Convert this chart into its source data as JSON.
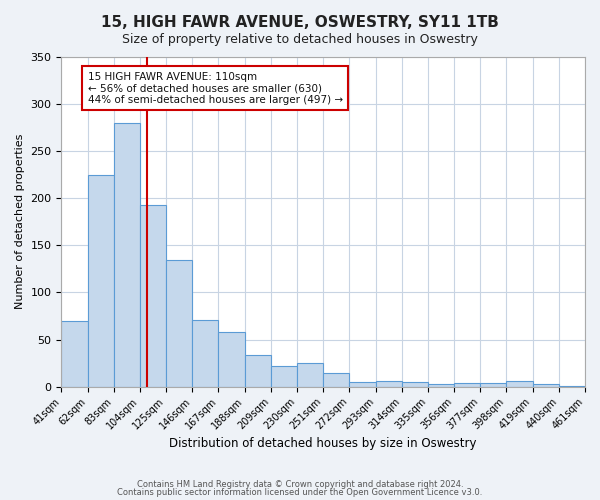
{
  "title": "15, HIGH FAWR AVENUE, OSWESTRY, SY11 1TB",
  "subtitle": "Size of property relative to detached houses in Oswestry",
  "xlabel": "Distribution of detached houses by size in Oswestry",
  "ylabel": "Number of detached properties",
  "categories": [
    "41sqm",
    "62sqm",
    "83sqm",
    "104sqm",
    "125sqm",
    "146sqm",
    "167sqm",
    "188sqm",
    "209sqm",
    "230sqm",
    "251sqm",
    "272sqm",
    "293sqm",
    "314sqm",
    "335sqm",
    "356sqm",
    "377sqm",
    "398sqm",
    "419sqm",
    "440sqm",
    "461sqm"
  ],
  "values": [
    70,
    224,
    279,
    193,
    134,
    71,
    58,
    34,
    22,
    25,
    15,
    5,
    6,
    5,
    3,
    4,
    4,
    6,
    3,
    1
  ],
  "bar_color": "#c5d8ec",
  "bar_edge_color": "#5b9bd5",
  "background_color": "#eef2f7",
  "plot_bg_color": "#ffffff",
  "grid_color": "#c8d4e3",
  "vline_x": 110,
  "vline_color": "#cc0000",
  "annotation_title": "15 HIGH FAWR AVENUE: 110sqm",
  "annotation_line1": "← 56% of detached houses are smaller (630)",
  "annotation_line2": "44% of semi-detached houses are larger (497) →",
  "annotation_box_color": "#ffffff",
  "annotation_box_edge": "#cc0000",
  "ylim": [
    0,
    350
  ],
  "yticks": [
    0,
    50,
    100,
    150,
    200,
    250,
    300,
    350
  ],
  "footer1": "Contains HM Land Registry data © Crown copyright and database right 2024.",
  "footer2": "Contains public sector information licensed under the Open Government Licence v3.0."
}
